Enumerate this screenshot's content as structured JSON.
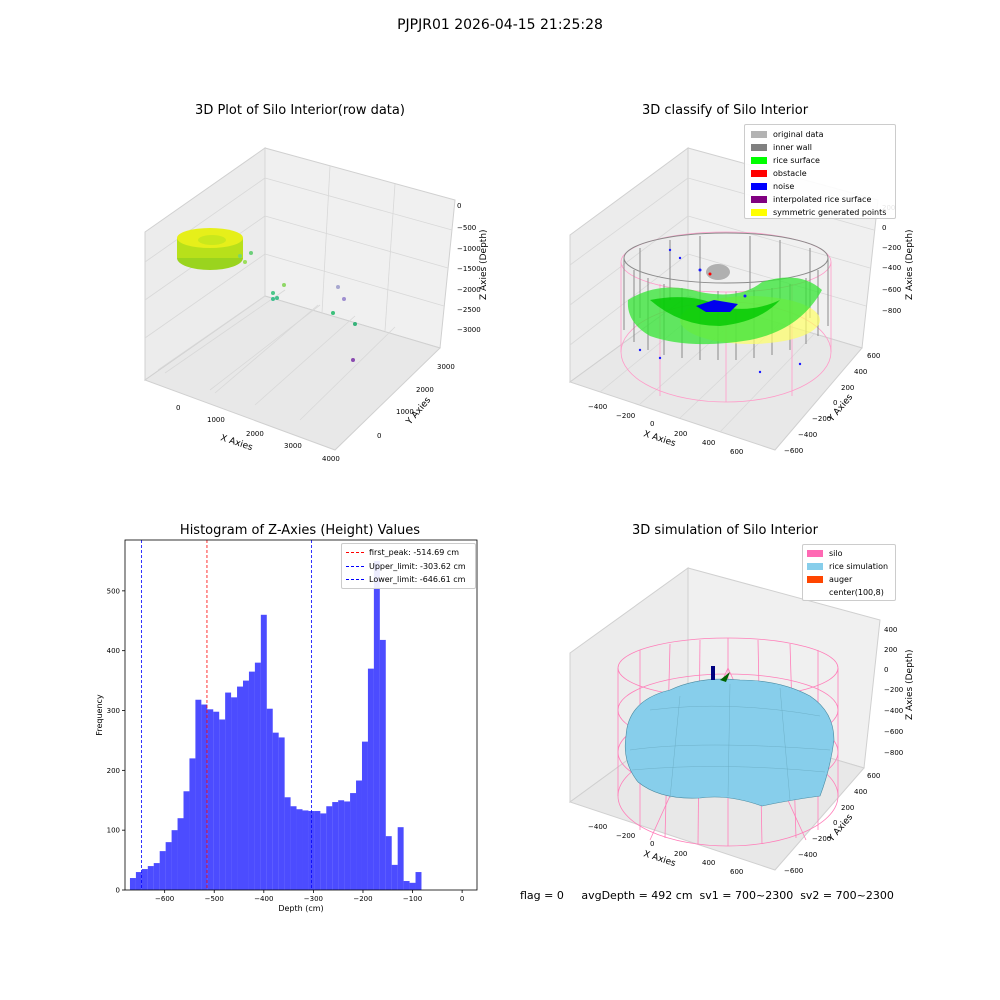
{
  "suptitle": "PJPJR01 2026-04-15 21:25:28",
  "panels": {
    "raw": {
      "title": "3D Plot of Silo Interior(row data)",
      "x_label": "X Axies",
      "y_label": "Y Axies",
      "z_label": "Z Axies (Depth)",
      "x_ticks": [
        "0",
        "1000",
        "2000",
        "3000",
        "4000"
      ],
      "y_ticks": [
        "0",
        "1000",
        "2000",
        "3000"
      ],
      "z_ticks": [
        "0",
        "−500",
        "−1000",
        "−1500",
        "−2000",
        "−2500",
        "−3000"
      ]
    },
    "classify": {
      "title": "3D classify of Silo Interior",
      "x_label": "X Axies",
      "y_label": "Y Axies",
      "z_label": "Z Axies (Depth)",
      "x_ticks": [
        "−400",
        "−200",
        "0",
        "200",
        "400",
        "600"
      ],
      "y_ticks": [
        "−600",
        "−400",
        "−200",
        "0",
        "200",
        "400",
        "600"
      ],
      "z_ticks": [
        "200",
        "0",
        "−200",
        "−400",
        "−600",
        "−800"
      ],
      "legend": [
        {
          "label": "original data",
          "color": "#b3b3b3"
        },
        {
          "label": "inner wall",
          "color": "#808080"
        },
        {
          "label": "rice surface",
          "color": "#00ff00"
        },
        {
          "label": "obstacle",
          "color": "#ff0000"
        },
        {
          "label": "noise",
          "color": "#0000ff"
        },
        {
          "label": "interpolated rice surface",
          "color": "#800080"
        },
        {
          "label": "symmetric generated points",
          "color": "#ffff00"
        }
      ]
    },
    "simulation": {
      "title": "3D simulation of Silo Interior",
      "x_label": "X Axies",
      "y_label": "Y Axies",
      "z_label": "Z Axies (Depth)",
      "x_ticks": [
        "−400",
        "−200",
        "0",
        "200",
        "400",
        "600"
      ],
      "y_ticks": [
        "−600",
        "−400",
        "−200",
        "0",
        "200",
        "400",
        "600"
      ],
      "z_ticks": [
        "400",
        "200",
        "0",
        "−200",
        "−400",
        "−600",
        "−800"
      ],
      "legend": [
        {
          "label": "silo",
          "color": "#ff69b4"
        },
        {
          "label": "rice simulation",
          "color": "#87ceeb"
        },
        {
          "label": "auger",
          "color": "#ff4500"
        },
        {
          "label": "center(100,8)",
          "color": ""
        }
      ]
    }
  },
  "status_line": "flag = 0     avgDepth = 492 cm  sv1 = 700~2300  sv2 = 700~2300",
  "chart_data": {
    "type": "bar",
    "title": "Histogram of Z-Axies (Height) Values",
    "xlabel": "Depth (cm)",
    "ylabel": "Frequency",
    "xlim": [
      -680,
      30
    ],
    "ylim": [
      0,
      585
    ],
    "x_ticks": [
      -600,
      -500,
      -400,
      -300,
      -200,
      -100,
      0
    ],
    "y_ticks": [
      0,
      100,
      200,
      300,
      400,
      500
    ],
    "bar_color": "#0000ff",
    "bin_start": -670,
    "bin_width": 12,
    "values": [
      20,
      30,
      35,
      40,
      45,
      65,
      80,
      100,
      120,
      165,
      220,
      318,
      310,
      302,
      298,
      285,
      330,
      322,
      340,
      350,
      365,
      380,
      460,
      303,
      263,
      255,
      155,
      140,
      135,
      133,
      132,
      132,
      128,
      140,
      147,
      150,
      148,
      162,
      183,
      248,
      370,
      550,
      418,
      90,
      42,
      105,
      15,
      12,
      30
    ],
    "lines": [
      {
        "label": "first_peak: -514.69 cm",
        "value": -514.69,
        "color": "#ff0000"
      },
      {
        "label": "Upper_limit: -303.62 cm",
        "value": -303.62,
        "color": "#0000ff"
      },
      {
        "label": "Lower_limit: -646.61 cm",
        "value": -646.61,
        "color": "#0000ff"
      }
    ]
  }
}
